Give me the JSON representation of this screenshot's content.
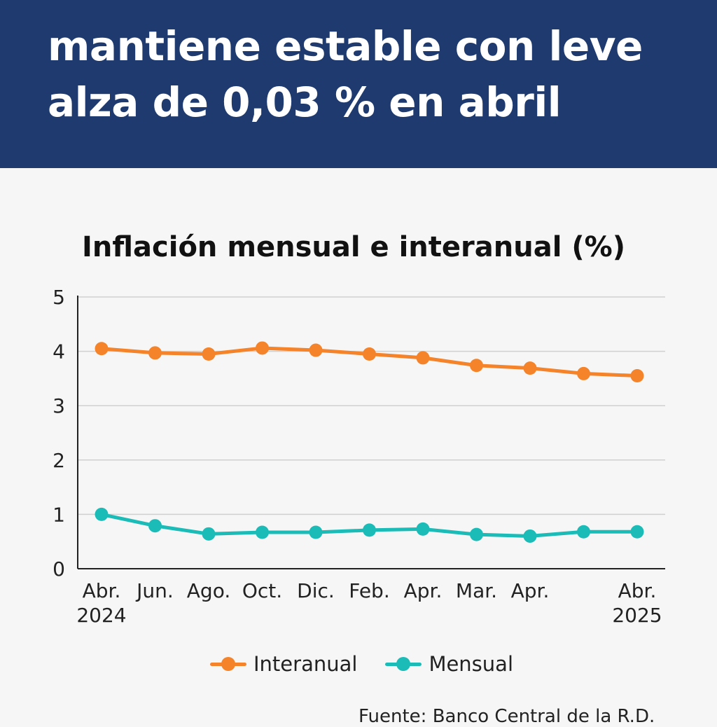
{
  "header": {
    "headline_line1": "mantiene estable con leve",
    "headline_line2": "alza de 0,03 % en abril"
  },
  "colors": {
    "banner": "#1e3a6e",
    "interanual": "#f5832a",
    "mensual": "#1bbcb8",
    "grid": "#d0d0d0",
    "axis": "#222222"
  },
  "chart_data": {
    "type": "line",
    "title": "Inflación mensual e interanual (%)",
    "xlabel": "",
    "ylabel": "",
    "ylim": [
      0,
      5
    ],
    "yticks": [
      "0",
      "1",
      "2",
      "3",
      "4",
      "5"
    ],
    "grid": true,
    "legend_position": "bottom",
    "categories": [
      [
        "Abr.",
        "2024"
      ],
      [
        "Jun.",
        ""
      ],
      [
        "Ago.",
        ""
      ],
      [
        "Oct.",
        ""
      ],
      [
        "Dic.",
        ""
      ],
      [
        "Feb.",
        ""
      ],
      [
        "Apr.",
        ""
      ],
      [
        "Mar.",
        ""
      ],
      [
        "Apr.",
        ""
      ],
      [
        "",
        ""
      ],
      [
        "Abr.",
        "2025"
      ]
    ],
    "series": [
      {
        "name": "Interanual",
        "color_key": "interanual",
        "values": [
          4.05,
          3.97,
          3.95,
          4.06,
          4.02,
          3.95,
          3.88,
          3.74,
          3.69,
          3.59,
          3.55
        ]
      },
      {
        "name": "Mensual",
        "color_key": "mensual",
        "values": [
          1.0,
          0.79,
          0.64,
          0.67,
          0.67,
          0.71,
          0.73,
          0.63,
          0.6,
          0.68,
          0.68
        ]
      }
    ]
  },
  "legend": {
    "interanual_label": "Interanual",
    "mensual_label": "Mensual"
  },
  "footer": {
    "source_text": "Fuente: Banco Central de la R.D."
  }
}
